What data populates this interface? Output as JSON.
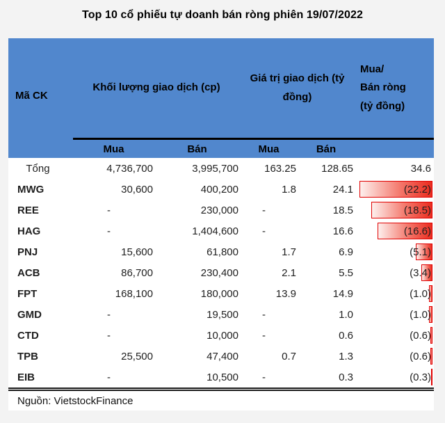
{
  "page": {
    "title": "Top 10 cổ phiếu tự doanh bán ròng phiên 19/07/2022"
  },
  "table": {
    "headers": {
      "code": "Mã CK",
      "volume": "Khối lượng giao dịch (cp)",
      "value": "Giá trị giao dịch (tỷ đồng)",
      "net": "Mua/\nBán ròng\n(tỷ đồng)"
    },
    "subheaders": {
      "vol_buy": "Mua",
      "vol_sell": "Bán",
      "val_buy": "Mua",
      "val_sell": "Bán"
    },
    "total": {
      "label": "Tổng",
      "vol_buy": "4,736,700",
      "vol_sell": "3,995,700",
      "val_buy": "163.25",
      "val_sell": "128.65",
      "net": "34.6"
    },
    "rows": [
      {
        "code": "MWG",
        "vol_buy": "30,600",
        "vol_sell": "400,200",
        "val_buy": "1.8",
        "val_sell": "24.1",
        "net": "(22.2)",
        "net_value": 22.2
      },
      {
        "code": "REE",
        "vol_buy": "-",
        "vol_sell": "230,000",
        "val_buy": "-",
        "val_sell": "18.5",
        "net": "(18.5)",
        "net_value": 18.5
      },
      {
        "code": "HAG",
        "vol_buy": "-",
        "vol_sell": "1,404,600",
        "val_buy": "-",
        "val_sell": "16.6",
        "net": "(16.6)",
        "net_value": 16.6
      },
      {
        "code": "PNJ",
        "vol_buy": "15,600",
        "vol_sell": "61,800",
        "val_buy": "1.7",
        "val_sell": "6.9",
        "net": "(5.1)",
        "net_value": 5.1
      },
      {
        "code": "ACB",
        "vol_buy": "86,700",
        "vol_sell": "230,400",
        "val_buy": "2.1",
        "val_sell": "5.5",
        "net": "(3.4)",
        "net_value": 3.4
      },
      {
        "code": "FPT",
        "vol_buy": "168,100",
        "vol_sell": "180,000",
        "val_buy": "13.9",
        "val_sell": "14.9",
        "net": "(1.0)",
        "net_value": 1.0
      },
      {
        "code": "GMD",
        "vol_buy": "-",
        "vol_sell": "19,500",
        "val_buy": "-",
        "val_sell": "1.0",
        "net": "(1.0)",
        "net_value": 1.0
      },
      {
        "code": "CTD",
        "vol_buy": "-",
        "vol_sell": "10,000",
        "val_buy": "-",
        "val_sell": "0.6",
        "net": "(0.6)",
        "net_value": 0.6
      },
      {
        "code": "TPB",
        "vol_buy": "25,500",
        "vol_sell": "47,400",
        "val_buy": "0.7",
        "val_sell": "1.3",
        "net": "(0.6)",
        "net_value": 0.6
      },
      {
        "code": "EIB",
        "vol_buy": "-",
        "vol_sell": "10,500",
        "val_buy": "-",
        "val_sell": "0.3",
        "net": "(0.3)",
        "net_value": 0.3
      }
    ],
    "bar_max": 22.2,
    "source": "Nguồn: VietstockFinance"
  },
  "colors": {
    "header_blue": "#5187cd",
    "bar_border": "#e00000",
    "bar_fill_light": "#fdf0ee",
    "bar_fill_dark": "#ea2c1f",
    "text": "#1f1f1f",
    "background": "#f3f3f3"
  },
  "chart_data": {
    "type": "table",
    "title": "Top 10 cổ phiếu tự doanh bán ròng phiên 19/07/2022",
    "columns": [
      "Mã CK",
      "Khối lượng giao dịch Mua (cp)",
      "Khối lượng giao dịch Bán (cp)",
      "Giá trị giao dịch Mua (tỷ đồng)",
      "Giá trị giao dịch Bán (tỷ đồng)",
      "Mua/Bán ròng (tỷ đồng)"
    ],
    "total_row": [
      "Tổng",
      4736700,
      3995700,
      163.25,
      128.65,
      34.6
    ],
    "rows": [
      [
        "MWG",
        30600,
        400200,
        1.8,
        24.1,
        -22.2
      ],
      [
        "REE",
        null,
        230000,
        null,
        18.5,
        -18.5
      ],
      [
        "HAG",
        null,
        1404600,
        null,
        16.6,
        -16.6
      ],
      [
        "PNJ",
        15600,
        61800,
        1.7,
        6.9,
        -5.1
      ],
      [
        "ACB",
        86700,
        230400,
        2.1,
        5.5,
        -3.4
      ],
      [
        "FPT",
        168100,
        180000,
        13.9,
        14.9,
        -1.0
      ],
      [
        "GMD",
        null,
        19500,
        null,
        1.0,
        -1.0
      ],
      [
        "CTD",
        null,
        10000,
        null,
        0.6,
        -0.6
      ],
      [
        "TPB",
        25500,
        47400,
        0.7,
        1.3,
        -0.6
      ],
      [
        "EIB",
        null,
        10500,
        null,
        0.3,
        -0.3
      ]
    ],
    "notes": "Negative net values shown in parentheses with right-anchored red data bars proportional to magnitude; source Nguồn: VietstockFinance"
  }
}
